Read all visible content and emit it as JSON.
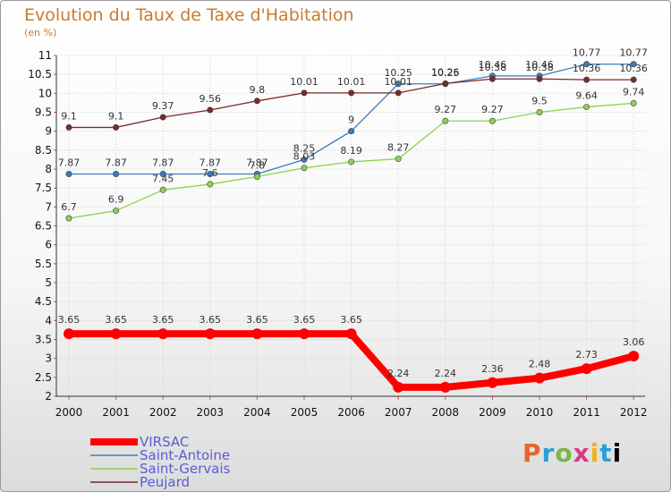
{
  "header": {
    "title": "Evolution du Taux de Taxe d'Habitation",
    "subtitle": "(en %)"
  },
  "logo": {
    "letters": [
      "P",
      "r",
      "o",
      "x",
      "i",
      "t",
      "i"
    ]
  },
  "colors": {
    "VIRSAC": "#ff0000",
    "Saint-Antoine": "#3a7cc0",
    "Saint-Gervais": "#8cd250",
    "Peujard": "#7a2a2a"
  },
  "chart_data": {
    "type": "line",
    "title": "Evolution du Taux de Taxe d'Habitation",
    "subtitle": "(en %)",
    "xlabel": "",
    "ylabel": "",
    "x": [
      "2000",
      "2001",
      "2002",
      "2003",
      "2004",
      "2005",
      "2006",
      "2007",
      "2008",
      "2009",
      "2010",
      "2011",
      "2012"
    ],
    "ylim": [
      2,
      11
    ],
    "yticks": [
      "2",
      "2.5",
      "3",
      "3.5",
      "4",
      "4.5",
      "5",
      "5.5",
      "6",
      "6.5",
      "7",
      "7.5",
      "8",
      "8.5",
      "9",
      "9.5",
      "10",
      "10.5",
      "11"
    ],
    "legend_position": "bottom-left",
    "series": [
      {
        "name": "VIRSAC",
        "color": "#ff0000",
        "values": [
          3.65,
          3.65,
          3.65,
          3.65,
          3.65,
          3.65,
          3.65,
          2.24,
          2.24,
          2.36,
          2.48,
          2.73,
          3.06
        ],
        "labels": [
          "3.65",
          "3.65",
          "3.65",
          "3.65",
          "3.65",
          "3.65",
          "3.65",
          "2.24",
          "2.24",
          "2.36",
          "2.48",
          "2.73",
          "3.06"
        ]
      },
      {
        "name": "Saint-Antoine",
        "color": "#3a7cc0",
        "values": [
          7.87,
          7.87,
          7.87,
          7.87,
          7.87,
          8.25,
          9,
          10.25,
          10.25,
          10.46,
          10.46,
          10.77,
          10.77
        ],
        "labels": [
          "7.87",
          "7.87",
          "7.87",
          "7.87",
          "7.87",
          "8.25",
          "9",
          "10.25",
          "10.25",
          "10.46",
          "10.46",
          "10.77",
          "10.77"
        ]
      },
      {
        "name": "Saint-Gervais",
        "color": "#8cd250",
        "values": [
          6.7,
          6.9,
          7.45,
          7.6,
          7.8,
          8.03,
          8.19,
          8.27,
          9.27,
          9.27,
          9.5,
          9.64,
          9.74
        ],
        "labels": [
          "6.7",
          "6.9",
          "7.45",
          "7.6",
          "7.8",
          "8.03",
          "8.19",
          "8.27",
          "9.27",
          "9.27",
          "9.5",
          "9.64",
          "9.74"
        ]
      },
      {
        "name": "Peujard",
        "color": "#7a2a2a",
        "values": [
          9.1,
          9.1,
          9.37,
          9.56,
          9.8,
          10.01,
          10.01,
          10.01,
          10.26,
          10.38,
          10.38,
          10.36,
          10.36
        ],
        "labels": [
          "9.1",
          "9.1",
          "9.37",
          "9.56",
          "9.8",
          "10.01",
          "10.01",
          "10.01",
          "10.26",
          "10.38",
          "10.38",
          "10.36",
          "10.36"
        ]
      }
    ]
  }
}
